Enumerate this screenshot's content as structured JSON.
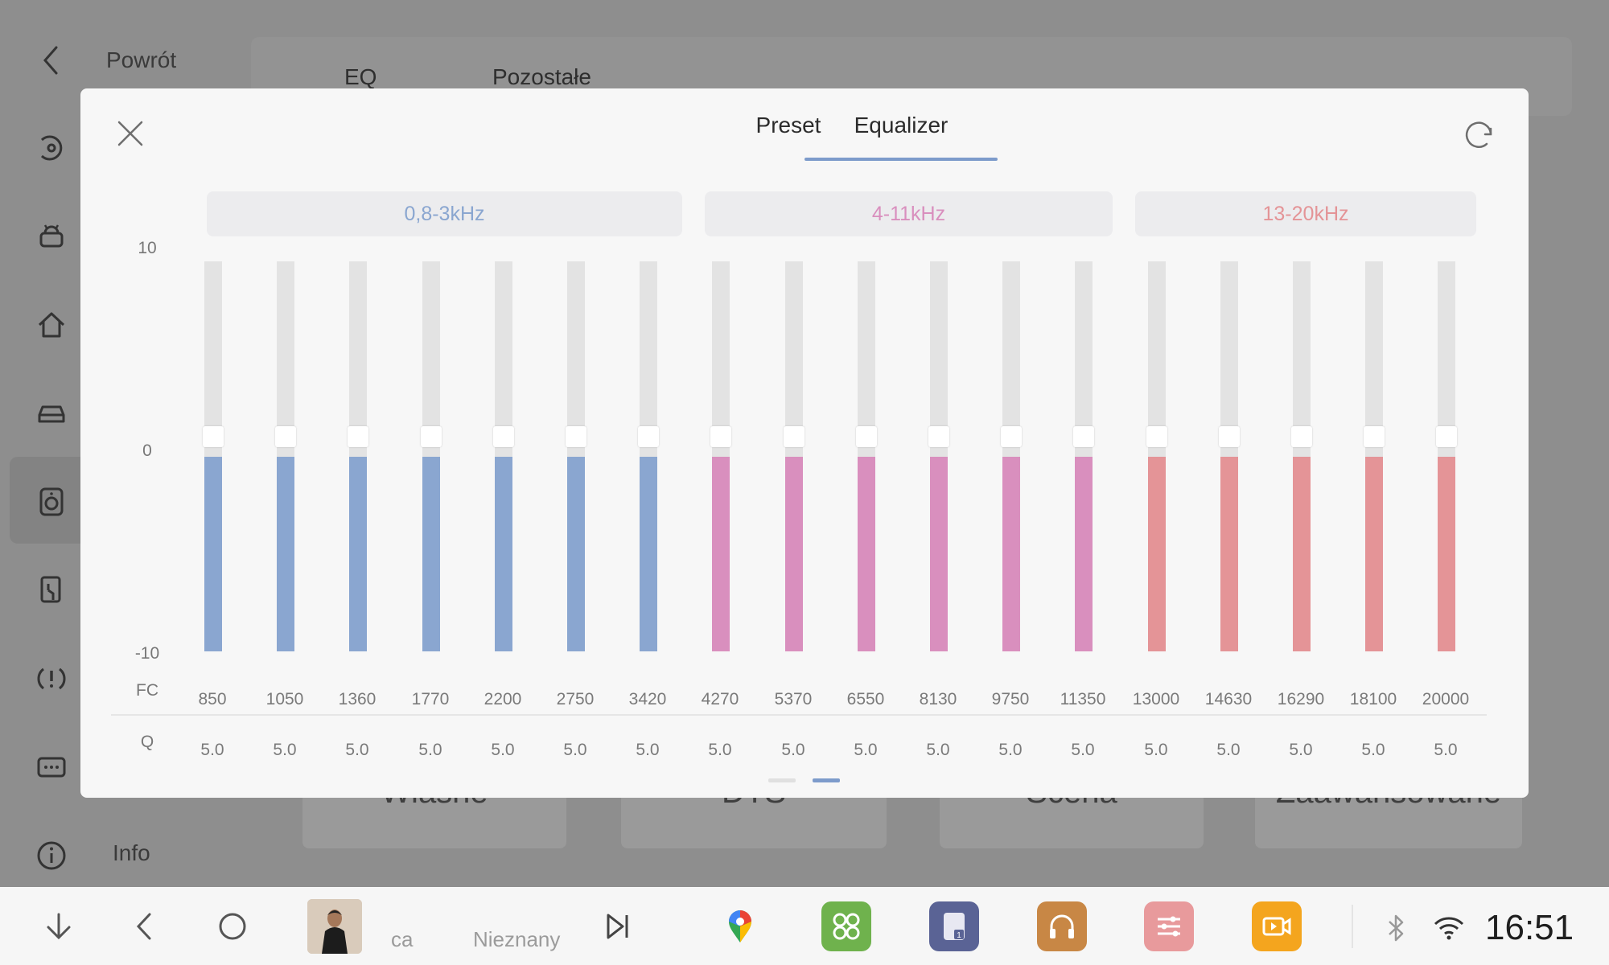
{
  "background": {
    "back_label": "Powrót",
    "tabs": [
      "EQ",
      "Pozostałe"
    ],
    "info_label": "Info",
    "cards": [
      "Własne",
      "DTS",
      "Scena",
      "Zaawansowane"
    ]
  },
  "dialog": {
    "tabs": [
      {
        "label": "Preset",
        "selected": false
      },
      {
        "label": "Equalizer",
        "selected": true
      }
    ],
    "groups": [
      {
        "label": "0,8-3kHz",
        "color": "#8aa6d0"
      },
      {
        "label": "4-11kHz",
        "color": "#d98fbe"
      },
      {
        "label": "13-20kHz",
        "color": "#e49497"
      }
    ],
    "axis": {
      "max": "10",
      "mid": "0",
      "min": "-10",
      "fc_label": "FC",
      "q_label": "Q"
    },
    "range": [
      -10,
      10
    ],
    "bands": [
      {
        "fc": "850",
        "q": "5.0",
        "gain": 0,
        "group": 0
      },
      {
        "fc": "1050",
        "q": "5.0",
        "gain": 0,
        "group": 0
      },
      {
        "fc": "1360",
        "q": "5.0",
        "gain": 0,
        "group": 0
      },
      {
        "fc": "1770",
        "q": "5.0",
        "gain": 0,
        "group": 0
      },
      {
        "fc": "2200",
        "q": "5.0",
        "gain": 0,
        "group": 0
      },
      {
        "fc": "2750",
        "q": "5.0",
        "gain": 0,
        "group": 0
      },
      {
        "fc": "3420",
        "q": "5.0",
        "gain": 0,
        "group": 0
      },
      {
        "fc": "4270",
        "q": "5.0",
        "gain": 0,
        "group": 1
      },
      {
        "fc": "5370",
        "q": "5.0",
        "gain": 0,
        "group": 1
      },
      {
        "fc": "6550",
        "q": "5.0",
        "gain": 0,
        "group": 1
      },
      {
        "fc": "8130",
        "q": "5.0",
        "gain": 0,
        "group": 1
      },
      {
        "fc": "9750",
        "q": "5.0",
        "gain": 0,
        "group": 1
      },
      {
        "fc": "11350",
        "q": "5.0",
        "gain": 0,
        "group": 1
      },
      {
        "fc": "13000",
        "q": "5.0",
        "gain": 0,
        "group": 2
      },
      {
        "fc": "14630",
        "q": "5.0",
        "gain": 0,
        "group": 2
      },
      {
        "fc": "16290",
        "q": "5.0",
        "gain": 0,
        "group": 2
      },
      {
        "fc": "18100",
        "q": "5.0",
        "gain": 0,
        "group": 2
      },
      {
        "fc": "20000",
        "q": "5.0",
        "gain": 0,
        "group": 2
      }
    ],
    "pages": 2,
    "current_page": 2
  },
  "bottombar": {
    "media_artist": "ca",
    "media_title": "Nieznany",
    "apps": [
      "maps-icon",
      "apps-grid-icon",
      "sim-card-icon",
      "music-icon",
      "equalizer-app-icon",
      "video-icon"
    ],
    "clock": "16:51"
  }
}
